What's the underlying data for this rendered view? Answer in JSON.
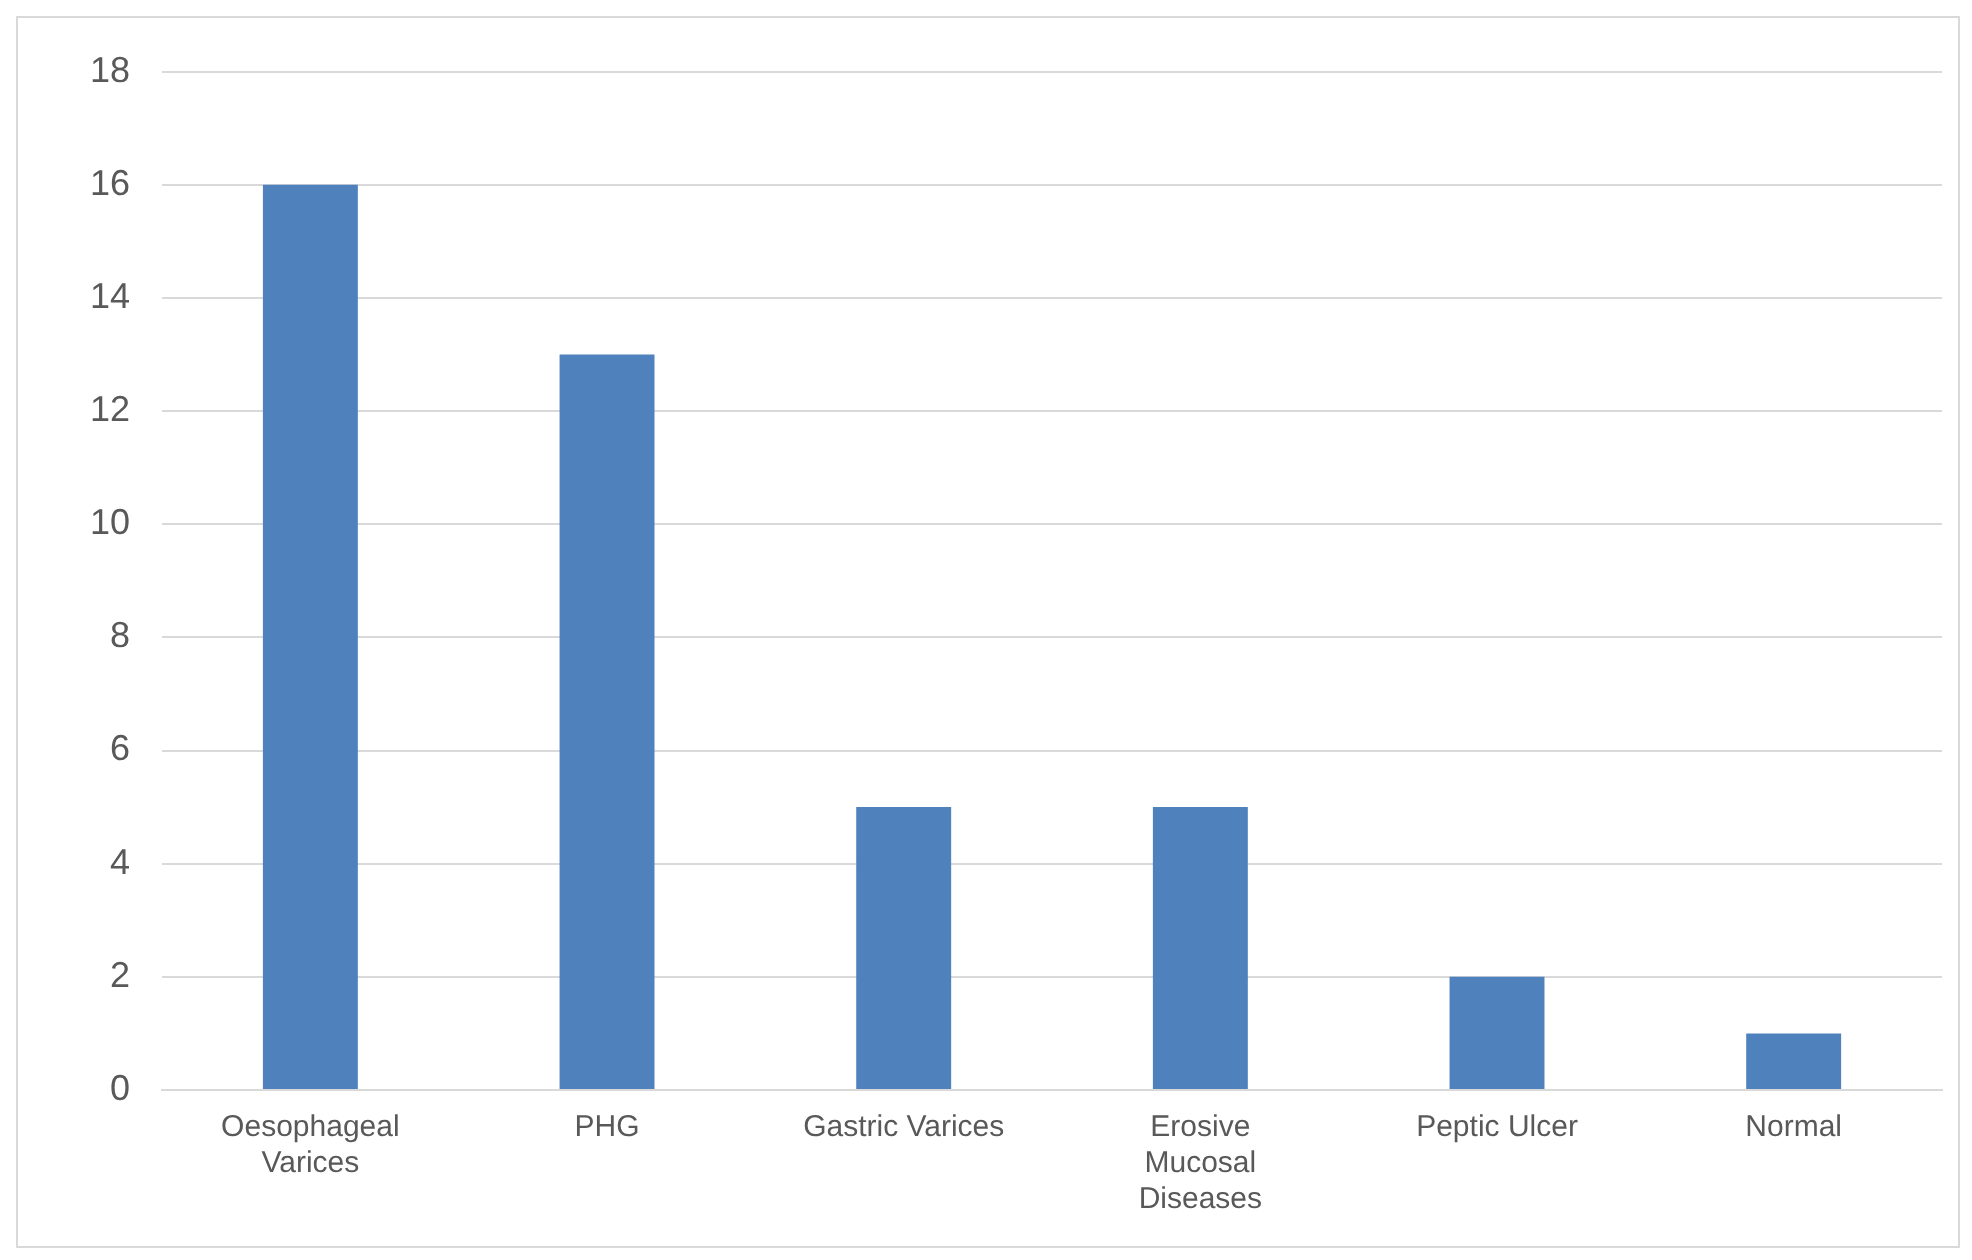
{
  "chart_data": {
    "type": "bar",
    "categories": [
      "Oesophageal Varices",
      "PHG",
      "Gastric Varices",
      "Erosive Mucosal Diseases",
      "Peptic Ulcer",
      "Normal"
    ],
    "values": [
      16,
      13,
      5,
      5,
      2,
      1
    ],
    "color": "#4f81bd",
    "ylim": [
      0,
      18
    ],
    "yticks": [
      0,
      2,
      4,
      6,
      8,
      10,
      12,
      14,
      16,
      18
    ],
    "grid": "y",
    "legend": false
  }
}
